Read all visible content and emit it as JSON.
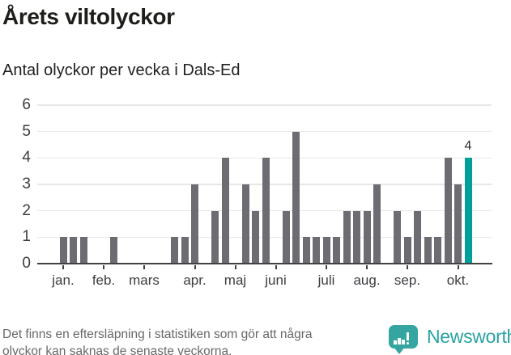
{
  "header": {
    "title": "Årets viltolyckor",
    "subtitle": "Antal olyckor per vecka i Dals-Ed"
  },
  "chart_data": {
    "type": "bar",
    "title": "Årets viltolyckor",
    "subtitle": "Antal olyckor per vecka i Dals-Ed",
    "x_unit": "week",
    "values": [
      0,
      1,
      1,
      1,
      0,
      0,
      1,
      0,
      0,
      0,
      0,
      0,
      1,
      1,
      3,
      0,
      2,
      4,
      0,
      3,
      2,
      4,
      0,
      2,
      5,
      1,
      1,
      1,
      1,
      2,
      2,
      2,
      3,
      0,
      2,
      1,
      2,
      1,
      1,
      4,
      3,
      4
    ],
    "month_ticks": [
      {
        "label": "jan.",
        "week": 1
      },
      {
        "label": "feb.",
        "week": 5
      },
      {
        "label": "mars",
        "week": 9
      },
      {
        "label": "apr.",
        "week": 14
      },
      {
        "label": "maj",
        "week": 18
      },
      {
        "label": "juni",
        "week": 22
      },
      {
        "label": "juli",
        "week": 27
      },
      {
        "label": "aug.",
        "week": 31
      },
      {
        "label": "sep.",
        "week": 35
      },
      {
        "label": "okt.",
        "week": 40
      }
    ],
    "yticks": [
      0,
      1,
      2,
      3,
      4,
      5,
      6
    ],
    "ylim": [
      0,
      6
    ],
    "grid": true,
    "highlight_last_bar": true,
    "last_value_label": "4"
  },
  "footer": {
    "note_lines": [
      "Det finns en eftersläpning i statistiken som gör att några",
      "olyckor kan saknas de senaste veckorna."
    ],
    "brand": "Newsworthy"
  },
  "colors": {
    "bar": "#6d6c72",
    "highlight": "#00a09a",
    "grid": "#e7e7e7",
    "axis": "#414141",
    "logo": "#35a5a2",
    "brand_text": "#2aa2a2"
  }
}
